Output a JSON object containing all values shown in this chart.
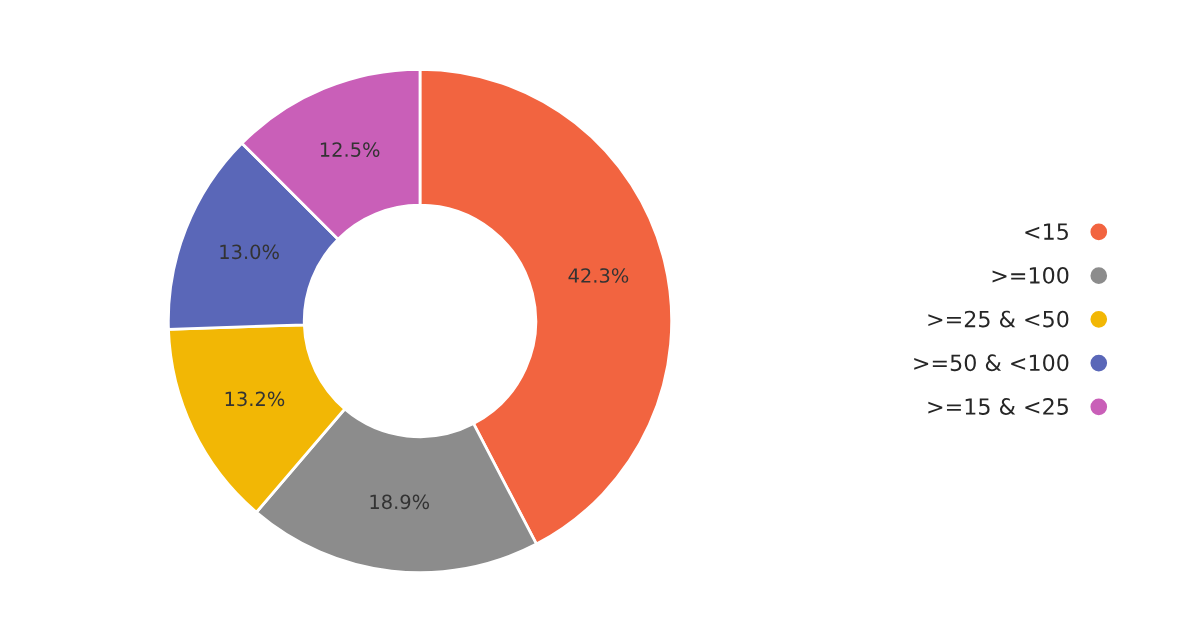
{
  "chart_data": {
    "type": "donut",
    "categories": [
      "<15",
      ">=100",
      ">=25 & <50",
      ">=50 & <100",
      ">=15 & <25"
    ],
    "values": [
      42.3,
      18.9,
      13.2,
      13.0,
      12.5
    ],
    "colors": [
      "#f26440",
      "#8c8c8c",
      "#f2b705",
      "#5a67b8",
      "#c95fb8"
    ],
    "value_labels": [
      "42.3%",
      "18.9%",
      "13.2%",
      "13.0%",
      "12.5%"
    ],
    "legend": "right"
  }
}
